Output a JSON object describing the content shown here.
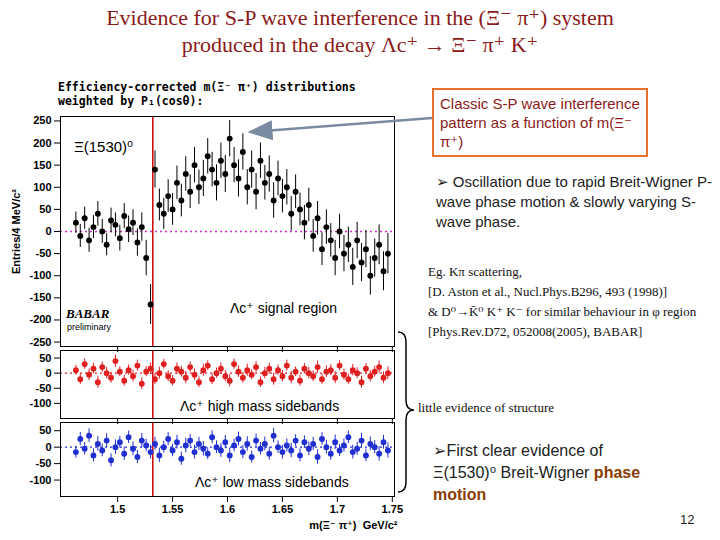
{
  "slide": {
    "title": [
      "Evidence for S-P wave interference in the (Ξ⁻ π⁺) system",
      "produced in the decay Λc⁺ → Ξ⁻ π⁺ K⁺"
    ],
    "callout": "Classic S-P wave interference pattern as a function of m(Ξ⁻ π⁺)",
    "bullet": "➢ Oscillation due to rapid Breit-Wigner P-wave phase motion & slowly varying S-wave phase.",
    "references": [
      "Eg. Kπ scattering,",
      "[D. Aston et al., Nucl.Phys.B296, 493 (1998)]",
      "& D⁰→K̄⁰ K⁺ K⁻ for similar behaviour in φ region",
      "[Phys.Rev.D72, 052008(2005), BABAR]"
    ],
    "bracket_note": "little evidence of structure",
    "conclusion": {
      "text": "➢First clear evidence of Ξ(1530)⁰ Breit-Wigner",
      "bold": "phase motion"
    },
    "page": 12
  },
  "chart_data": [
    {
      "type": "scatter",
      "title": "Efficiency-corrected m(Ξ⁻ π⁺) distributions weighted by P₁(cosθ):",
      "ylabel": "Entries/4 MeV/c²",
      "annotations": [
        "Ξ(1530)⁰",
        "BABAR",
        "preliminary",
        "Λc⁺ signal region"
      ],
      "x": [
        1.462,
        1.466,
        1.47,
        1.474,
        1.478,
        1.482,
        1.486,
        1.49,
        1.494,
        1.498,
        1.502,
        1.506,
        1.51,
        1.514,
        1.518,
        1.522,
        1.526,
        1.53,
        1.534,
        1.538,
        1.542,
        1.546,
        1.55,
        1.554,
        1.558,
        1.562,
        1.566,
        1.57,
        1.574,
        1.578,
        1.582,
        1.586,
        1.59,
        1.594,
        1.598,
        1.602,
        1.606,
        1.61,
        1.614,
        1.618,
        1.622,
        1.626,
        1.63,
        1.634,
        1.638,
        1.642,
        1.646,
        1.65,
        1.654,
        1.658,
        1.662,
        1.666,
        1.67,
        1.674,
        1.678,
        1.682,
        1.686,
        1.69,
        1.694,
        1.698,
        1.702,
        1.706,
        1.71,
        1.714,
        1.718,
        1.722,
        1.726,
        1.73,
        1.734,
        1.738,
        1.742,
        1.746
      ],
      "values": [
        20,
        -10,
        30,
        -20,
        10,
        40,
        0,
        -30,
        25,
        15,
        -15,
        35,
        5,
        20,
        -25,
        10,
        -60,
        -165,
        140,
        60,
        40,
        80,
        50,
        110,
        70,
        130,
        90,
        150,
        100,
        120,
        170,
        140,
        110,
        160,
        130,
        210,
        150,
        120,
        180,
        100,
        140,
        90,
        160,
        110,
        130,
        70,
        120,
        80,
        100,
        40,
        90,
        50,
        20,
        60,
        -10,
        30,
        -40,
        10,
        -20,
        -60,
        0,
        -50,
        -30,
        -80,
        -20,
        -70,
        -40,
        -100,
        -60,
        -30,
        -90,
        -50
      ],
      "errors": [
        24,
        26,
        25,
        27,
        26,
        28,
        27,
        25,
        28,
        27,
        29,
        28,
        30,
        29,
        31,
        32,
        40,
        45,
        42,
        36,
        35,
        37,
        36,
        38,
        37,
        39,
        38,
        40,
        39,
        41,
        40,
        39,
        41,
        40,
        42,
        41,
        40,
        42,
        41,
        40,
        42,
        41,
        40,
        39,
        41,
        40,
        39,
        38,
        40,
        39,
        38,
        37,
        39,
        38,
        37,
        38,
        37,
        39,
        38,
        40,
        39,
        41,
        40,
        42,
        41,
        43,
        42,
        44,
        43,
        45,
        44,
        46
      ],
      "color": "#000000",
      "marker": "circle",
      "xlim": [
        1.448,
        1.752
      ],
      "ylim": [
        -260,
        260
      ],
      "xticks": [
        1.5,
        1.55,
        1.6,
        1.65,
        1.7,
        1.75
      ],
      "yticks": [
        -250,
        -200,
        -150,
        -100,
        -50,
        0,
        50,
        100,
        150,
        200,
        250
      ],
      "tick_labels": "y",
      "baseline": 0,
      "reference_x": 1.532
    },
    {
      "type": "scatter",
      "annotations": [
        "Λc⁺ high mass sidebands"
      ],
      "x": [
        1.462,
        1.466,
        1.47,
        1.474,
        1.478,
        1.482,
        1.486,
        1.49,
        1.494,
        1.498,
        1.502,
        1.506,
        1.51,
        1.514,
        1.518,
        1.522,
        1.526,
        1.53,
        1.534,
        1.538,
        1.542,
        1.546,
        1.55,
        1.554,
        1.558,
        1.562,
        1.566,
        1.57,
        1.574,
        1.578,
        1.582,
        1.586,
        1.59,
        1.594,
        1.598,
        1.602,
        1.606,
        1.61,
        1.614,
        1.618,
        1.622,
        1.626,
        1.63,
        1.634,
        1.638,
        1.642,
        1.646,
        1.65,
        1.654,
        1.658,
        1.662,
        1.666,
        1.67,
        1.674,
        1.678,
        1.682,
        1.686,
        1.69,
        1.694,
        1.698,
        1.702,
        1.706,
        1.71,
        1.714,
        1.718,
        1.722,
        1.726,
        1.73,
        1.734,
        1.738,
        1.742,
        1.746
      ],
      "values": [
        10,
        -20,
        30,
        -5,
        15,
        -30,
        20,
        0,
        -15,
        40,
        5,
        -25,
        10,
        -10,
        25,
        -35,
        5,
        15,
        -20,
        0,
        30,
        -10,
        -25,
        15,
        5,
        -15,
        20,
        -5,
        -30,
        10,
        25,
        -20,
        0,
        15,
        -10,
        -25,
        30,
        5,
        -15,
        10,
        -5,
        20,
        -30,
        0,
        15,
        -20,
        10,
        -10,
        25,
        -15,
        5,
        -25,
        15,
        0,
        -10,
        20,
        -20,
        5,
        10,
        -15,
        25,
        -5,
        -20,
        10,
        0,
        -30,
        15,
        -10,
        5,
        20,
        -15,
        0
      ],
      "errors": [
        16,
        18,
        17,
        19,
        18,
        20,
        17,
        19,
        18,
        20,
        16,
        18,
        17,
        19,
        18,
        20,
        17,
        19,
        18,
        20,
        16,
        18,
        17,
        19,
        18,
        20,
        17,
        19,
        18,
        20,
        16,
        18,
        17,
        19,
        18,
        20,
        17,
        19,
        18,
        20,
        16,
        18,
        17,
        19,
        18,
        20,
        17,
        19,
        18,
        20,
        16,
        18,
        17,
        19,
        18,
        20,
        17,
        19,
        18,
        20,
        16,
        18,
        17,
        19,
        18,
        20,
        17,
        19,
        18,
        20,
        19,
        21
      ],
      "color": "#e02020",
      "marker": "circle",
      "xlim": [
        1.448,
        1.752
      ],
      "ylim": [
        -150,
        75
      ],
      "xticks": [
        1.5,
        1.55,
        1.6,
        1.65,
        1.7,
        1.75
      ],
      "yticks": [
        -100,
        -50,
        0,
        50
      ],
      "tick_labels": "y",
      "baseline": 0,
      "reference_x": 1.532
    },
    {
      "type": "scatter",
      "annotations": [
        "Λc⁺ low mass sidebands"
      ],
      "xlabel": "m(Ξ⁻ π⁺)  GeV/c²",
      "x": [
        1.462,
        1.466,
        1.47,
        1.474,
        1.478,
        1.482,
        1.486,
        1.49,
        1.494,
        1.498,
        1.502,
        1.506,
        1.51,
        1.514,
        1.518,
        1.522,
        1.526,
        1.53,
        1.534,
        1.538,
        1.542,
        1.546,
        1.55,
        1.554,
        1.558,
        1.562,
        1.566,
        1.57,
        1.574,
        1.578,
        1.582,
        1.586,
        1.59,
        1.594,
        1.598,
        1.602,
        1.606,
        1.61,
        1.614,
        1.618,
        1.622,
        1.626,
        1.63,
        1.634,
        1.638,
        1.642,
        1.646,
        1.65,
        1.654,
        1.658,
        1.662,
        1.666,
        1.67,
        1.674,
        1.678,
        1.682,
        1.686,
        1.69,
        1.694,
        1.698,
        1.702,
        1.706,
        1.71,
        1.714,
        1.718,
        1.722,
        1.726,
        1.73,
        1.734,
        1.738,
        1.742,
        1.746
      ],
      "values": [
        -15,
        25,
        -5,
        35,
        -25,
        10,
        -10,
        20,
        -40,
        0,
        15,
        -20,
        30,
        -5,
        -30,
        20,
        5,
        -15,
        10,
        -25,
        0,
        25,
        -10,
        15,
        -35,
        5,
        20,
        -15,
        10,
        -5,
        -20,
        30,
        0,
        -10,
        15,
        -25,
        5,
        25,
        -15,
        10,
        -30,
        20,
        -5,
        10,
        -20,
        35,
        0,
        -15,
        5,
        -10,
        20,
        -25,
        15,
        -5,
        10,
        -30,
        25,
        0,
        -20,
        15,
        -10,
        5,
        30,
        -15,
        -5,
        20,
        -25,
        10,
        0,
        -20,
        15,
        -10
      ],
      "errors": [
        18,
        20,
        19,
        21,
        20,
        22,
        19,
        21,
        20,
        22,
        18,
        20,
        19,
        21,
        20,
        22,
        19,
        21,
        20,
        22,
        18,
        20,
        19,
        21,
        20,
        22,
        19,
        21,
        20,
        22,
        18,
        20,
        19,
        21,
        20,
        22,
        19,
        21,
        20,
        22,
        18,
        20,
        19,
        21,
        20,
        22,
        19,
        21,
        20,
        22,
        18,
        20,
        19,
        21,
        20,
        22,
        19,
        21,
        20,
        22,
        18,
        20,
        19,
        21,
        20,
        22,
        19,
        21,
        20,
        22,
        21,
        23
      ],
      "color": "#2030d0",
      "marker": "circle",
      "xlim": [
        1.448,
        1.752
      ],
      "ylim": [
        -150,
        75
      ],
      "xticks": [
        1.5,
        1.55,
        1.6,
        1.65,
        1.7,
        1.75
      ],
      "yticks": [
        -100,
        -50,
        0,
        50
      ],
      "baseline": 0,
      "reference_x": 1.532
    }
  ]
}
